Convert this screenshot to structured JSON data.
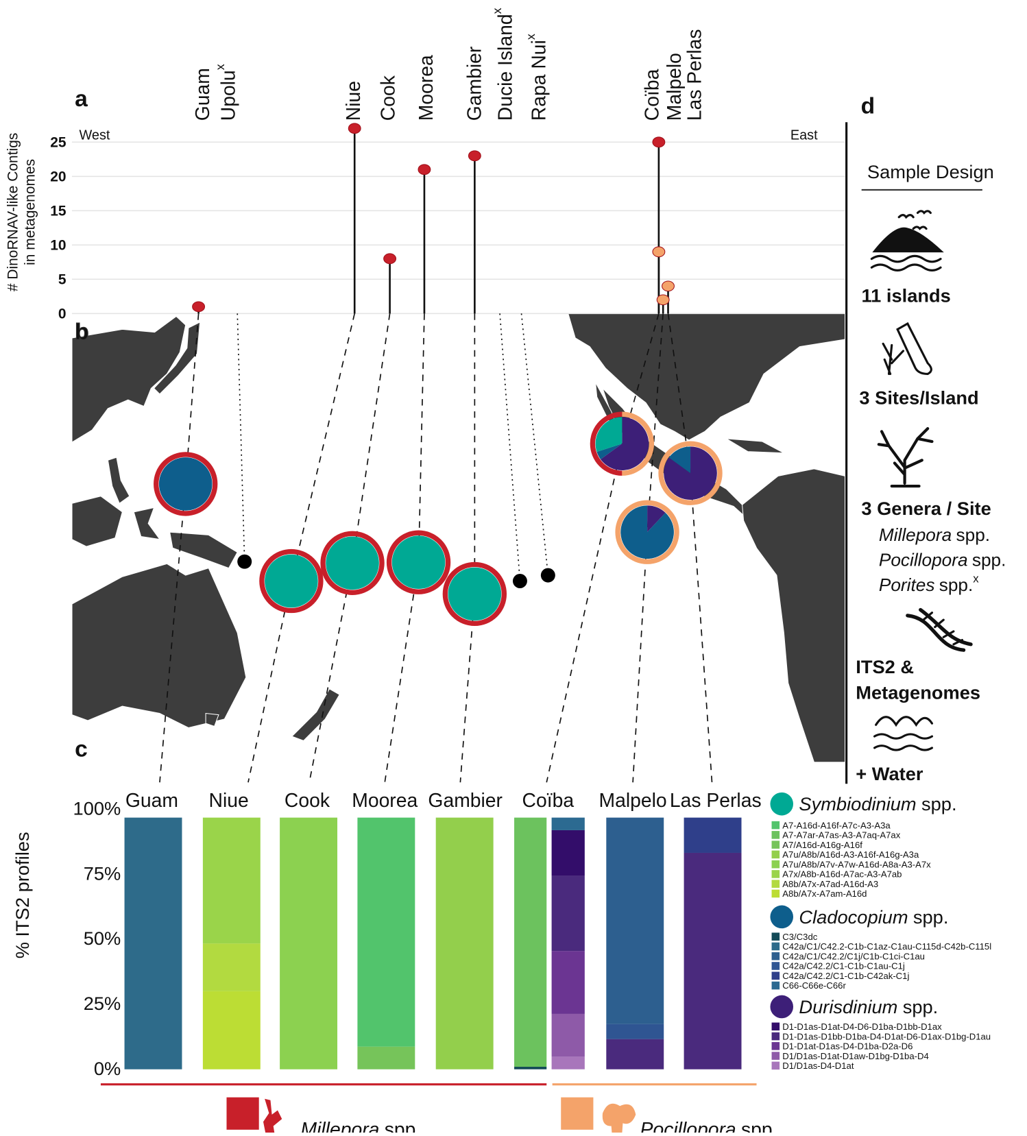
{
  "chart_data": [
    {
      "type": "lollipop",
      "panel": "a",
      "categories": [
        "Guam",
        "Upolu",
        "Niue",
        "Cook",
        "Moorea",
        "Gambier",
        "Ducie Island",
        "Rapa Nui",
        "Coïba",
        "Malpelo",
        "Las Perlas"
      ],
      "category_marks": [
        null,
        "x",
        null,
        null,
        null,
        null,
        "x",
        "x",
        null,
        null,
        null
      ],
      "west": "West",
      "east": "East",
      "ylabel": [
        "# DinoRNAV-like Contigs",
        "in metagenomes"
      ],
      "ylim": [
        0,
        28
      ],
      "yticks": [
        0,
        5,
        10,
        15,
        20,
        25
      ],
      "grid": true,
      "series": [
        {
          "name": "Millepora",
          "suffix": "spp.",
          "color": "#c8202a",
          "values": [
            1,
            null,
            27,
            8,
            21,
            23,
            null,
            null,
            25,
            null,
            null
          ]
        },
        {
          "name": "Pocillopora",
          "suffix": "spp.",
          "color": "#f4a36a",
          "values": [
            null,
            null,
            null,
            null,
            null,
            null,
            null,
            null,
            9,
            2,
            4
          ]
        }
      ]
    },
    {
      "type": "pie",
      "panel": "b",
      "values": [
        [
          0,
          100,
          0
        ],
        null,
        [
          100,
          0,
          0
        ],
        [
          100,
          0,
          0
        ],
        [
          100,
          0,
          0
        ],
        [
          100,
          0,
          0
        ],
        null,
        null,
        [
          30,
          5,
          65
        ],
        [
          0,
          88,
          12
        ],
        [
          0,
          15,
          85
        ]
      ]
    },
    {
      "type": "stacked_bar",
      "panel": "c",
      "categories": [
        "Guam",
        "Niue",
        "Cook",
        "Moorea",
        "Gambier",
        "Coïba",
        null,
        "Malpelo",
        "Las Perlas"
      ],
      "ylabel": "% ITS2 profiles",
      "ylim": [
        0,
        100
      ],
      "yticks": [
        {
          "value": 0,
          "label": "0%"
        },
        {
          "value": 25,
          "label": "25%"
        },
        {
          "value": 50,
          "label": "50%"
        },
        {
          "value": 75,
          "label": "75%"
        },
        {
          "value": 100,
          "label": "100%"
        }
      ],
      "groups": [
        {
          "genus": "Symbiodinium",
          "suffix": "spp.",
          "color": "#00a994",
          "series": [
            {
              "name": "A7-A16d-A16f-A7c-A3-A3a",
              "color": "#52c46c",
              "values": [
                null,
                null,
                null,
                91,
                null,
                null,
                null,
                null,
                null
              ]
            },
            {
              "name": "A7-A7ar-A7as-A3-A7aq-A7ax",
              "color": "#6cc25e",
              "values": [
                null,
                null,
                null,
                null,
                null,
                99,
                null,
                null,
                null
              ]
            },
            {
              "name": "A7/A16d-A16g-A16f",
              "color": "#76c45a",
              "values": [
                null,
                null,
                null,
                9,
                null,
                null,
                null,
                null,
                null
              ]
            },
            {
              "name": "A7u/A8b/A16d-A3-A16f-A16g-A3a",
              "color": "#93cf4c",
              "values": [
                null,
                null,
                null,
                null,
                100,
                null,
                null,
                null,
                null
              ]
            },
            {
              "name": "A7u/A8b/A7v-A7w-A16d-A8a-A3-A7x",
              "color": "#8cd150",
              "values": [
                null,
                null,
                100,
                null,
                null,
                null,
                null,
                null,
                null
              ]
            },
            {
              "name": "A7x/A8b-A16d-A7ac-A3-A7ab",
              "color": "#9ad44a",
              "values": [
                null,
                50,
                null,
                null,
                null,
                null,
                null,
                null,
                null
              ]
            },
            {
              "name": "A8b/A7x-A7ad-A16d-A3",
              "color": "#b2da40",
              "values": [
                null,
                19,
                null,
                null,
                null,
                null,
                null,
                null,
                null
              ]
            },
            {
              "name": "A8b/A7x-A7am-A16d",
              "color": "#bcdd34",
              "values": [
                null,
                31,
                null,
                null,
                null,
                null,
                null,
                null,
                null
              ]
            }
          ]
        },
        {
          "genus": "Cladocopium",
          "suffix": "spp.",
          "color": "#0e5e8c",
          "series": [
            {
              "name": "C3/C3dc",
              "color": "#134a57",
              "values": [
                null,
                null,
                null,
                null,
                null,
                1,
                null,
                null,
                null
              ]
            },
            {
              "name": "C42a/C1/C42.2-C1b-C1az-C1au-C115d-C42b-C115l",
              "color": "#2e6b8a",
              "values": [
                100,
                null,
                null,
                null,
                null,
                null,
                null,
                null,
                null
              ]
            },
            {
              "name": "C42a/C1/C42.2/C1j/C1b-C1ci-C1au",
              "color": "#2d5f8f",
              "values": [
                null,
                null,
                null,
                null,
                null,
                null,
                null,
                82,
                null
              ]
            },
            {
              "name": "C42a/C42.2/C1-C1b-C1au-C1j",
              "color": "#2f5592",
              "values": [
                null,
                null,
                null,
                null,
                null,
                null,
                null,
                6,
                null
              ]
            },
            {
              "name": "C42a/C42.2/C1-C1b-C42ak-C1j",
              "color": "#2f3f8a",
              "values": [
                null,
                null,
                null,
                null,
                null,
                null,
                null,
                null,
                14
              ]
            },
            {
              "name": "C66-C66e-C66r",
              "color": "#2c6a91",
              "values": [
                null,
                null,
                null,
                null,
                null,
                null,
                5,
                null,
                null
              ]
            }
          ]
        },
        {
          "genus": "Durisdinium",
          "suffix": "spp.",
          "color": "#3d1f78",
          "series": [
            {
              "name": "D1-D1as-D1at-D4-D6-D1ba-D1bb-D1ax",
              "color": "#330d6a",
              "values": [
                null,
                null,
                null,
                null,
                null,
                null,
                18,
                null,
                null
              ]
            },
            {
              "name": "D1-D1as-D1bb-D1ba-D4-D1at-D6-D1ax-D1bg-D1au",
              "color": "#4a2a7d",
              "values": [
                null,
                null,
                null,
                null,
                null,
                null,
                30,
                12,
                86
              ]
            },
            {
              "name": "D1-D1at-D1as-D4-D1ba-D2a-D6",
              "color": "#6b3592",
              "values": [
                null,
                null,
                null,
                null,
                null,
                null,
                25,
                null,
                null
              ]
            },
            {
              "name": "D1/D1as-D1at-D1aw-D1bg-D1ba-D4",
              "color": "#8e5aa8",
              "values": [
                null,
                null,
                null,
                null,
                null,
                null,
                17,
                null,
                null
              ]
            },
            {
              "name": "D1/D1as-D4-D1at",
              "color": "#a876bb",
              "values": [
                null,
                null,
                null,
                null,
                null,
                null,
                5,
                null,
                null
              ]
            }
          ]
        }
      ]
    }
  ],
  "panel_d": {
    "label": "d",
    "title": "Sample Design",
    "items": [
      "11 islands",
      "3 Sites/Island",
      "3 Genera / Site"
    ],
    "genera": [
      {
        "genus": "Millepora",
        "suffix": "spp."
      },
      {
        "genus": "Pocillopora",
        "suffix": "spp."
      },
      {
        "genus": "Porites",
        "suffix": "spp.",
        "mark": "x"
      }
    ],
    "data_lines": [
      "ITS2 &",
      "Metagenomes"
    ],
    "water": "+ Water"
  }
}
